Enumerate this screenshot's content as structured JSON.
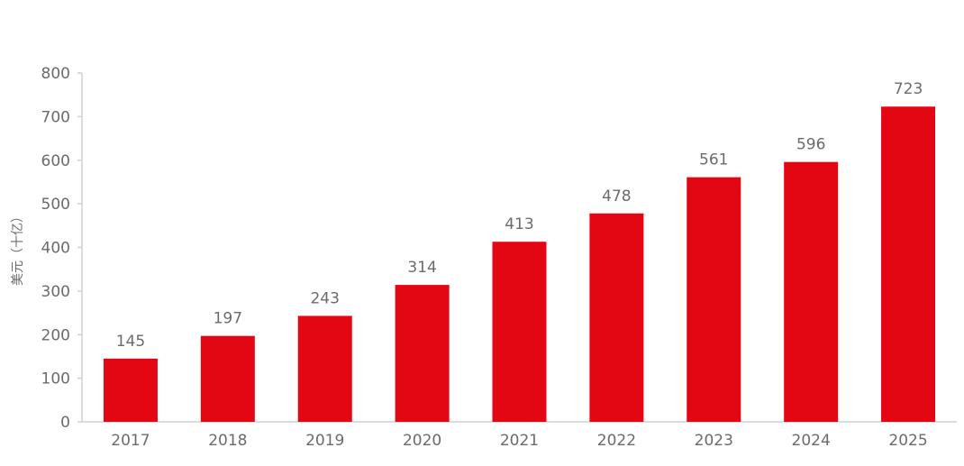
{
  "chart_data": {
    "type": "bar",
    "title": "",
    "xlabel": "",
    "ylabel": "美元（十亿）",
    "categories": [
      "2017",
      "2018",
      "2019",
      "2020",
      "2021",
      "2022",
      "2023",
      "2024",
      "2025"
    ],
    "values": [
      145,
      197,
      243,
      314,
      413,
      478,
      561,
      596,
      723
    ],
    "ylim": [
      0,
      800
    ],
    "yticks": [
      0,
      100,
      200,
      300,
      400,
      500,
      600,
      700,
      800
    ],
    "grid": false,
    "legend": "none",
    "data_labels": true,
    "colors": {
      "bar": "#e30613",
      "text": "#6b6b6b",
      "axis": "#d0d0d0"
    }
  }
}
